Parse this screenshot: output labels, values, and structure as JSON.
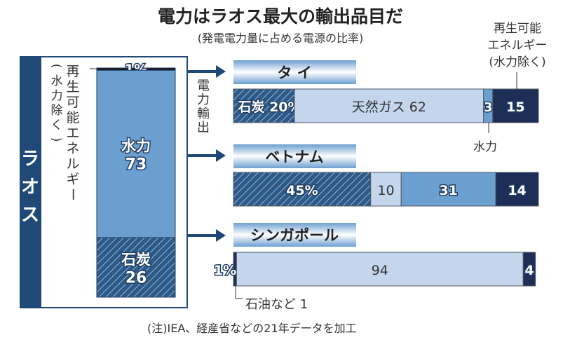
{
  "chart_data": {
    "type": "bar",
    "title": "電力はラオス最大の輸出品目だ",
    "subtitle": "(発電電力量に占める電源の比率)",
    "note": "(注)IEA、経産省などの21年データを加工",
    "export_label": "電力輸出",
    "laos": {
      "name": "ラオス",
      "renewable_label": "再生可能エネルギー",
      "renewable_sub": "(水力除く)",
      "segments": [
        {
          "name": "再生可能エネルギー",
          "value": 1,
          "label": "1%"
        },
        {
          "name": "水力",
          "value": 73,
          "label1": "水力",
          "label2": "73"
        },
        {
          "name": "石炭",
          "value": 26,
          "label1": "石炭",
          "label2": "26"
        }
      ]
    },
    "countries": [
      {
        "name": "タ イ",
        "segments": [
          {
            "type": "coal",
            "value": 20,
            "label": "石炭 20%"
          },
          {
            "type": "gas",
            "value": 62,
            "label": "天然ガス 62"
          },
          {
            "type": "hydro",
            "value": 3,
            "label": "3"
          },
          {
            "type": "renew",
            "value": 15,
            "label": "15"
          }
        ]
      },
      {
        "name": "ベトナム",
        "segments": [
          {
            "type": "coal",
            "value": 45,
            "label": "45%"
          },
          {
            "type": "gas",
            "value": 10,
            "label": "10"
          },
          {
            "type": "hydro",
            "value": 31,
            "label": "31"
          },
          {
            "type": "renew",
            "value": 14,
            "label": "14"
          }
        ]
      },
      {
        "name": "シンガポール",
        "segments": [
          {
            "type": "oil",
            "value": 1,
            "label": "1%"
          },
          {
            "type": "gas",
            "value": 94,
            "label": "94"
          },
          {
            "type": "renew",
            "value": 4,
            "label": "4"
          }
        ]
      }
    ],
    "callouts": {
      "renewable": [
        "再生可能",
        "エネルギー",
        "(水力除く)"
      ],
      "hydro": "水力",
      "oil": "石油など 1"
    },
    "colors": {
      "coal": "#2d5a86",
      "gas": "#c3d6ec",
      "hydro": "#6b9fd0",
      "renew": "#1d2f57",
      "dark": "#1f4a78"
    }
  }
}
